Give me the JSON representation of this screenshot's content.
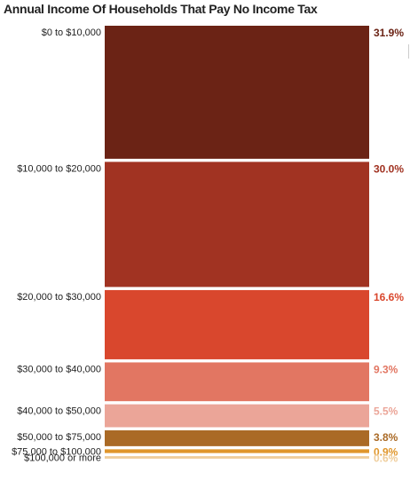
{
  "chart_data": {
    "type": "bar",
    "title": "Annual Income Of Households That Pay No Income Tax",
    "categories": [
      "$0 to $10,000",
      "$10,000 to $20,000",
      "$20,000 to $30,000",
      "$30,000 to $40,000",
      "$40,000 to $50,000",
      "$50,000 to $75,000",
      "$75,000 to $100,000",
      "$100,000 or more"
    ],
    "values": [
      31.9,
      30.0,
      16.6,
      9.3,
      5.5,
      3.8,
      0.9,
      0.6
    ],
    "value_labels": [
      "31.9%",
      "30.0%",
      "16.6%",
      "9.3%",
      "5.5%",
      "3.8%",
      "0.9%",
      "0.6%"
    ],
    "colors": [
      "#6b2315",
      "#a13322",
      "#d9472d",
      "#e27662",
      "#eba598",
      "#aa6a26",
      "#e0962b",
      "#efcd9b"
    ],
    "label_colors": [
      "#6b2315",
      "#a13322",
      "#d9472d",
      "#e27662",
      "#eba598",
      "#aa6a26",
      "#e0962b",
      "#efcd9b"
    ],
    "xlabel": "",
    "ylabel": "",
    "grid": false,
    "legend": "none"
  }
}
